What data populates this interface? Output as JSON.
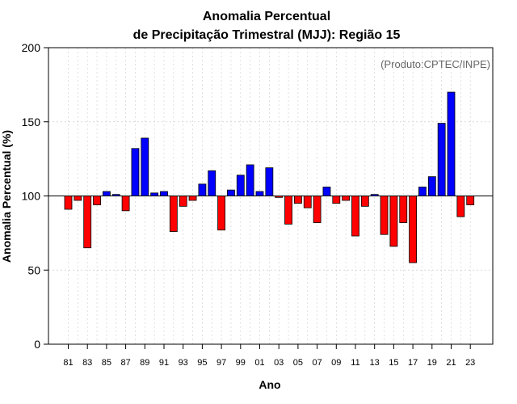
{
  "chart_data": {
    "type": "bar",
    "title_line1": "Anomalia Percentual",
    "title_line2": "de Precipitação Trimestral (MJJ): Região 15",
    "xlabel": "Ano",
    "ylabel": "Anomalia Percentual (%)",
    "credit": "(Produto:CPTEC/INPE)",
    "baseline": 100,
    "ylim": [
      0,
      200
    ],
    "yticks": [
      0,
      50,
      100,
      150,
      200
    ],
    "grid": true,
    "colors": {
      "above": "#0000ff",
      "below": "#ff0000",
      "edge": "#000000",
      "grid": "#cccccc"
    },
    "x_tick_labels": [
      "81",
      "83",
      "85",
      "87",
      "89",
      "91",
      "93",
      "95",
      "97",
      "99",
      "01",
      "03",
      "05",
      "07",
      "09",
      "11",
      "13",
      "15",
      "17",
      "19",
      "21",
      "23"
    ],
    "years": [
      1981,
      1982,
      1983,
      1984,
      1985,
      1986,
      1987,
      1988,
      1989,
      1990,
      1991,
      1992,
      1993,
      1994,
      1995,
      1996,
      1997,
      1998,
      1999,
      2000,
      2001,
      2002,
      2003,
      2004,
      2005,
      2006,
      2007,
      2008,
      2009,
      2010,
      2011,
      2012,
      2013,
      2014,
      2015,
      2016,
      2017,
      2018,
      2019,
      2020,
      2021,
      2022,
      2023
    ],
    "values": [
      91,
      97,
      65,
      94,
      103,
      101,
      90,
      132,
      139,
      102,
      103,
      76,
      93,
      97,
      108,
      117,
      77,
      104,
      114,
      121,
      103,
      119,
      99,
      81,
      95,
      92,
      82,
      106,
      95,
      97,
      73,
      93,
      101,
      74,
      66,
      82,
      55,
      106,
      113,
      149,
      170,
      86,
      94
    ]
  }
}
